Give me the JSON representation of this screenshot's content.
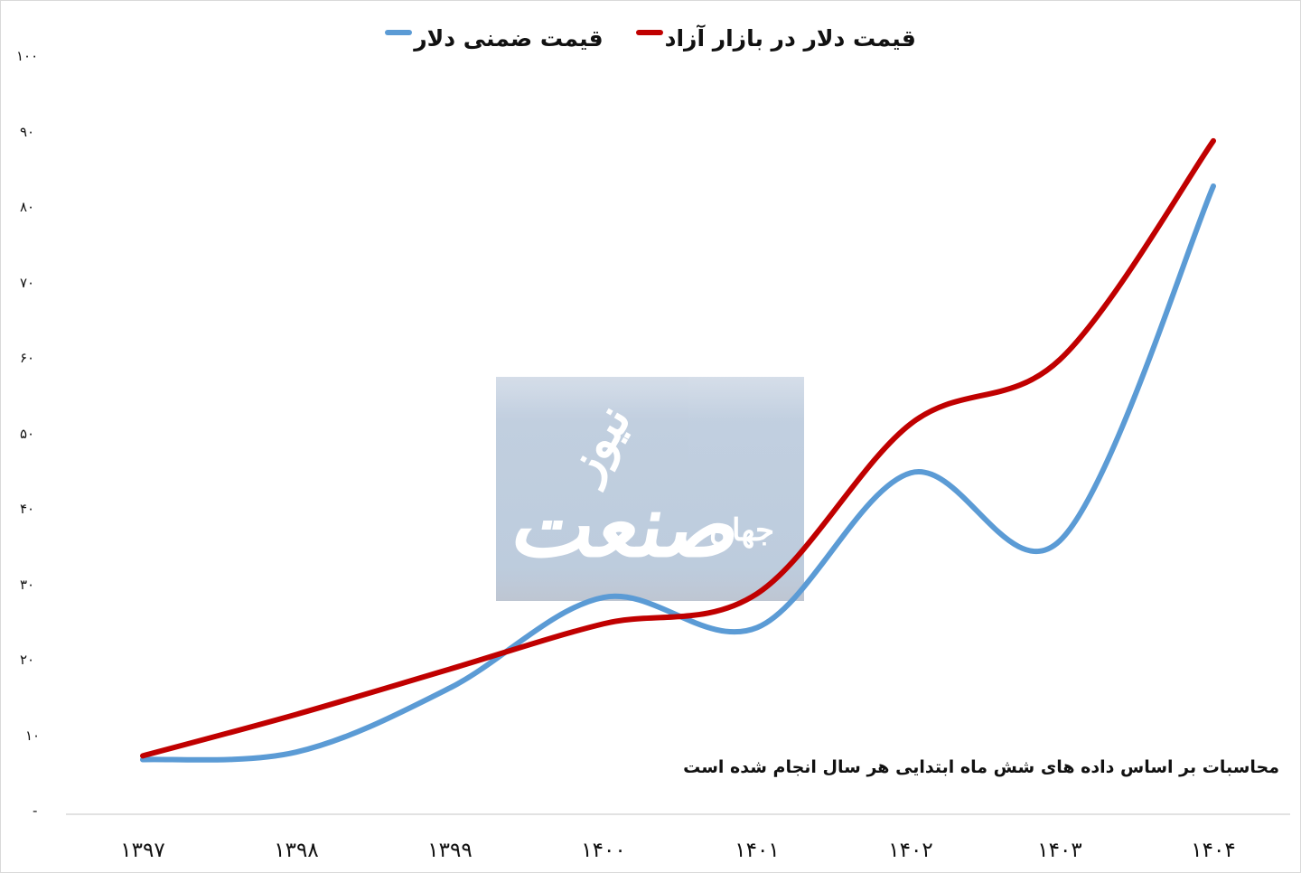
{
  "legend": {
    "items": [
      {
        "label": "قیمت دلار در بازار آزاد",
        "color": "#c00000"
      },
      {
        "label": "قیمت ضمنی دلار",
        "color": "#5b9bd5"
      }
    ]
  },
  "axes": {
    "y_ticks": [
      "۱۰۰",
      "۹۰",
      "۸۰",
      "۷۰",
      "۶۰",
      "۵۰",
      "۴۰",
      "۳۰",
      "۲۰",
      "۱۰",
      "-"
    ],
    "x_ticks": [
      "۱۳۹۷",
      "۱۳۹۸",
      "۱۳۹۹",
      "۱۴۰۰",
      "۱۴۰۱",
      "۱۴۰۲",
      "۱۴۰۳",
      "۱۴۰۴"
    ]
  },
  "note": "محاسبات بر اساس داده های شش ماه ابتدایی هر سال انجام شده است",
  "watermark": {
    "main": "صنعت",
    "sub_top": "نیوز",
    "sub_side": "جهان"
  },
  "chart_data": {
    "type": "line",
    "title": "",
    "xlabel": "",
    "ylabel": "",
    "categories": [
      "1397",
      "1398",
      "1399",
      "1400",
      "1401",
      "1402",
      "1403",
      "1404"
    ],
    "series": [
      {
        "name": "قیمت دلار در بازار آزاد",
        "color": "#c00000",
        "values": [
          7.5,
          13,
          19,
          25,
          29,
          51.5,
          60,
          89
        ]
      },
      {
        "name": "قیمت ضمنی دلار",
        "color": "#5b9bd5",
        "values": [
          7,
          8,
          16.5,
          28.5,
          24.5,
          45,
          36,
          83
        ]
      }
    ],
    "ylim": [
      0,
      100
    ],
    "y_tick_step": 10,
    "grid": false,
    "smoothed": true,
    "legend_position": "top",
    "annotation": "محاسبات بر اساس داده های شش ماه ابتدایی هر سال انجام شده است"
  }
}
